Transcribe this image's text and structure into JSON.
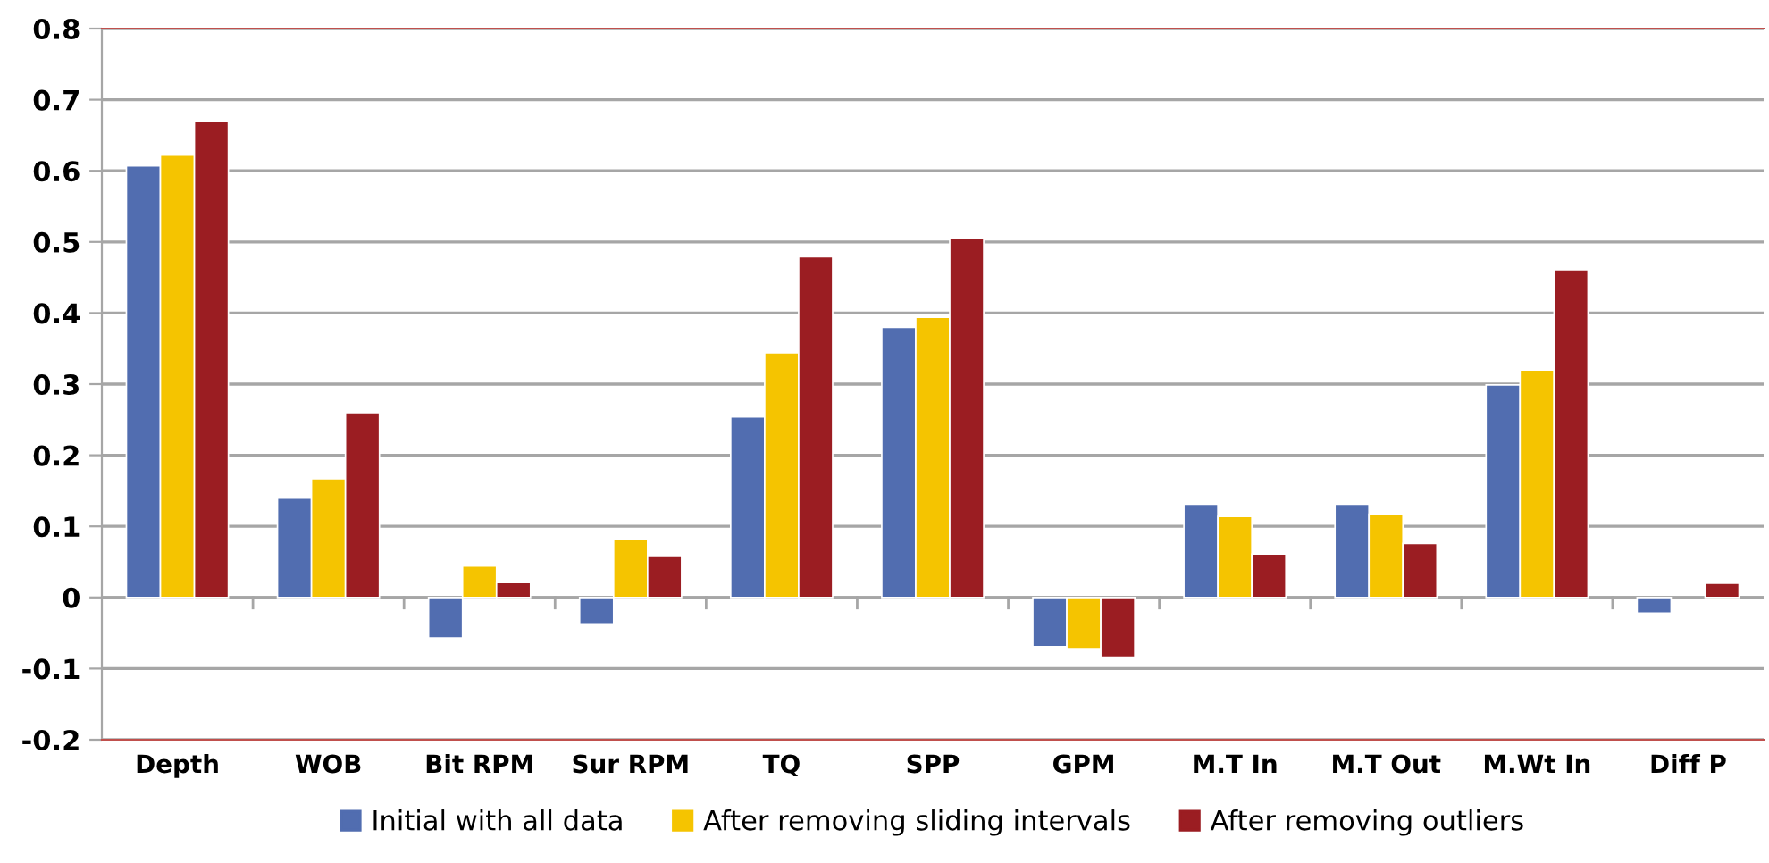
{
  "chart_data": {
    "type": "bar",
    "categories": [
      "Depth",
      "WOB",
      "Bit RPM",
      "Sur RPM",
      "TQ",
      "SPP",
      "GPM",
      "M.T In",
      "M.T Out",
      "M.Wt In",
      "Diff P"
    ],
    "series": [
      {
        "name": "Initial with all data",
        "color": "#516db0",
        "values": [
          0.607,
          0.141,
          -0.057,
          -0.037,
          0.254,
          0.38,
          -0.069,
          0.131,
          0.131,
          0.299,
          -0.022
        ]
      },
      {
        "name": "After removing sliding intervals",
        "color": "#f5c400",
        "values": [
          0.622,
          0.167,
          0.044,
          0.082,
          0.344,
          0.394,
          -0.072,
          0.114,
          0.117,
          0.32,
          null
        ]
      },
      {
        "name": "After removing outliers",
        "color": "#9b1d22",
        "values": [
          0.669,
          0.26,
          0.021,
          0.059,
          0.479,
          0.505,
          -0.084,
          0.061,
          0.076,
          0.461,
          0.02
        ]
      }
    ],
    "ylim": [
      -0.2,
      0.8
    ],
    "yticks": [
      -0.2,
      -0.1,
      0,
      0.1,
      0.2,
      0.3,
      0.4,
      0.5,
      0.6,
      0.7,
      0.8
    ],
    "grid": "y",
    "legend": "bottom"
  }
}
